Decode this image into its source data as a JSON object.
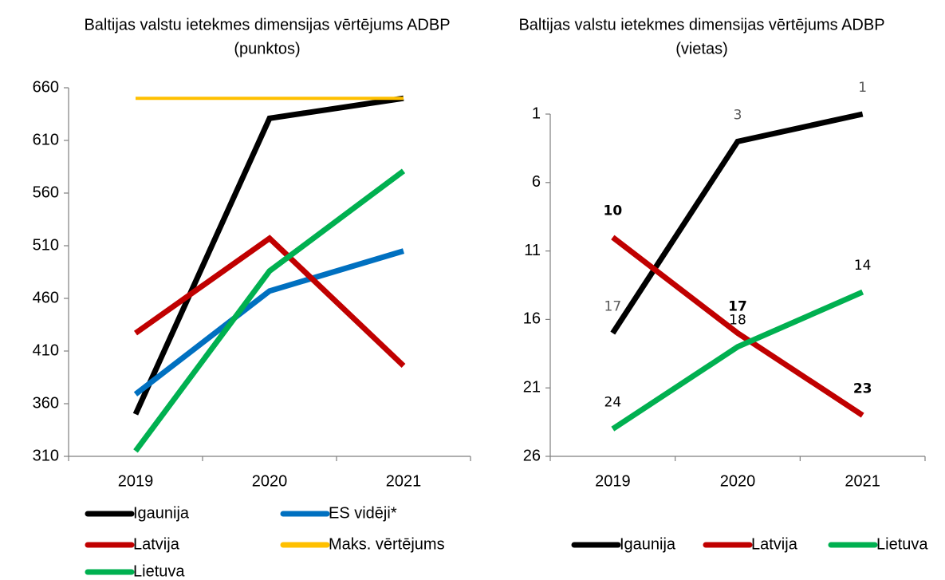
{
  "chart_data": [
    {
      "type": "line",
      "title": [
        "Baltijas valstu ietekmes dimensijas vērtējums ADBP",
        "(punktos)"
      ],
      "categories": [
        "2019",
        "2020",
        "2021"
      ],
      "ylim": [
        310,
        660
      ],
      "yticks": [
        310,
        360,
        410,
        460,
        510,
        560,
        610,
        660
      ],
      "series": [
        {
          "name": "Igaunija",
          "color": "#000000",
          "values": [
            350,
            631,
            650
          ]
        },
        {
          "name": "ES vidēji*",
          "color": "#0070c0",
          "values": [
            369,
            467,
            505
          ]
        },
        {
          "name": "Latvija",
          "color": "#c00000",
          "values": [
            427,
            517,
            396
          ]
        },
        {
          "name": "Maks. vērtējums",
          "color": "#ffc000",
          "values": [
            650,
            650,
            650
          ]
        },
        {
          "name": "Lietuva",
          "color": "#00b050",
          "values": [
            315,
            486,
            581
          ]
        }
      ]
    },
    {
      "type": "line",
      "title": [
        "Baltijas valstu ietekmes dimensijas vērtējums ADBP",
        "(vietas)"
      ],
      "categories": [
        "2019",
        "2020",
        "2021"
      ],
      "ylim": [
        1,
        26
      ],
      "yticks": [
        1,
        6,
        11,
        16,
        21,
        26
      ],
      "inverted": true,
      "data_labels": true,
      "series": [
        {
          "name": "Igaunija",
          "color": "#000000",
          "values": [
            17,
            3,
            1
          ]
        },
        {
          "name": "Latvija",
          "color": "#c00000",
          "values": [
            10,
            17,
            23
          ]
        },
        {
          "name": "Lietuva",
          "color": "#00b050",
          "values": [
            24,
            18,
            14
          ]
        }
      ]
    }
  ]
}
